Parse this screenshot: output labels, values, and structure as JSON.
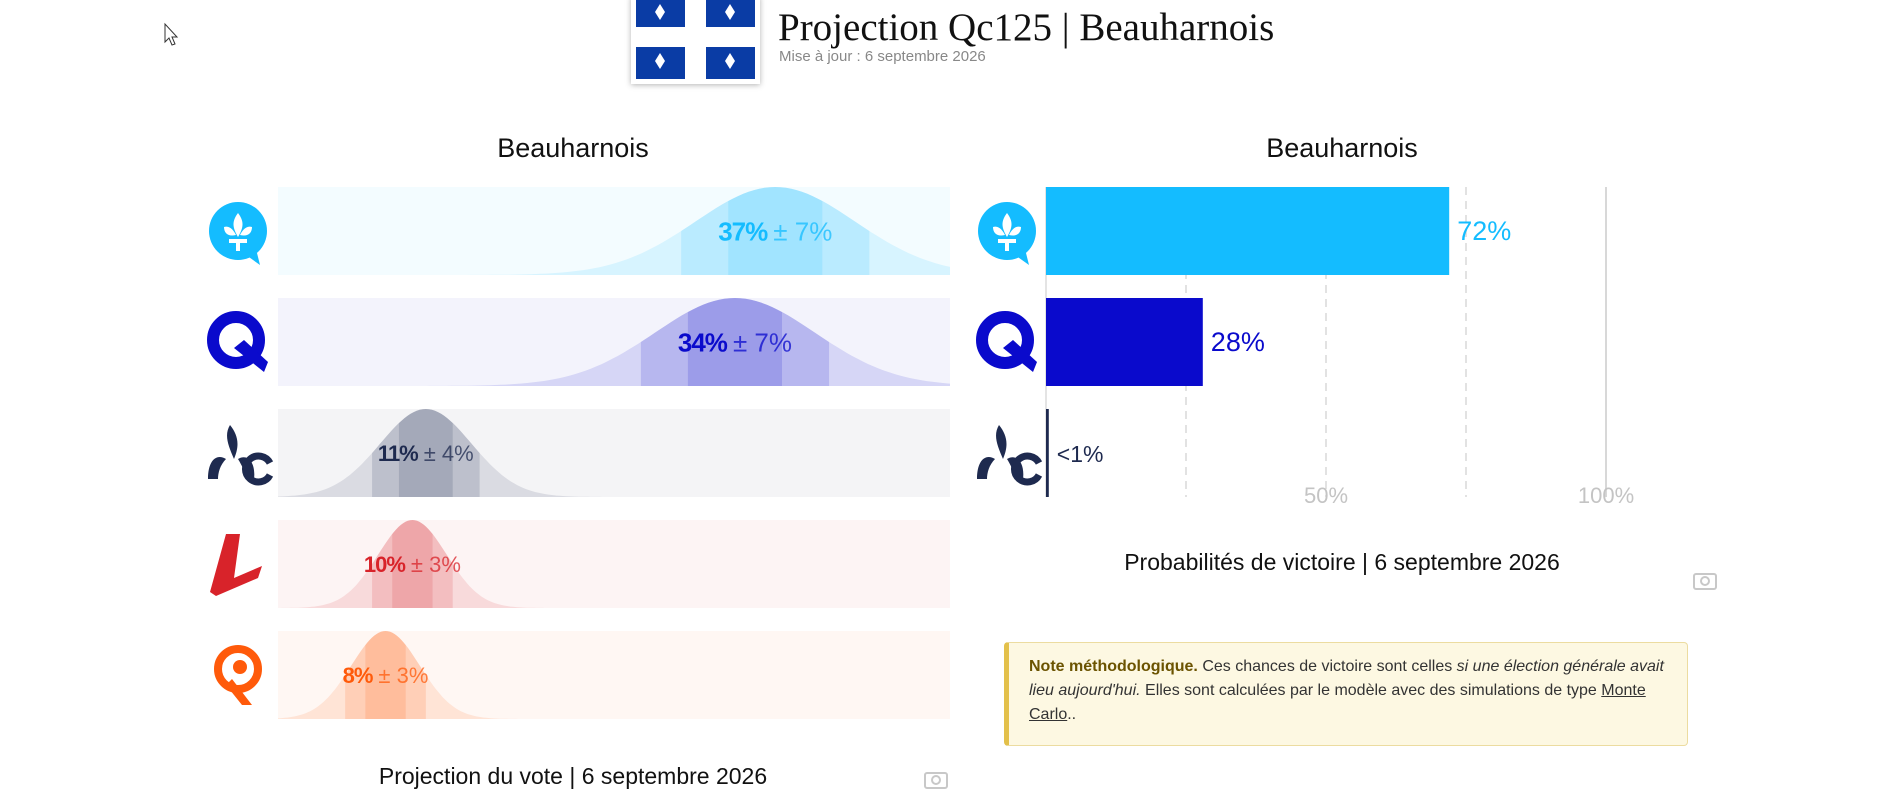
{
  "header": {
    "title": "Projection Qc125 | Beauharnois",
    "updated": "Mise à jour : 6 septembre 2026"
  },
  "chart_data": [
    {
      "type": "distribution",
      "title": "Beauharnois",
      "footer": "Projection du vote | 6 septembre 2026",
      "categories": [
        null,
        null,
        null,
        null,
        null
      ],
      "values": [
        37,
        34,
        11,
        10,
        8
      ],
      "value_labels": [
        "37%",
        "34%",
        "11%",
        "10%",
        "8%"
      ],
      "errors": [
        7,
        7,
        4,
        3,
        3
      ],
      "error_labels": [
        "± 7%",
        "± 7%",
        "± 4%",
        "± 3%",
        "± 3%"
      ],
      "colors": [
        "#14bcff",
        "#0a0acc",
        "#1e2a4f",
        "#d8232a",
        "#ff5a0a"
      ],
      "xlim": [
        0,
        50
      ]
    },
    {
      "type": "hbar",
      "title": "Beauharnois",
      "footer": "Probabilités de victoire | 6 septembre 2026",
      "categories": [
        null,
        null,
        null
      ],
      "values": [
        72,
        28,
        0.5
      ],
      "value_labels": [
        "72%",
        "28%",
        "<1%"
      ],
      "colors": [
        "#14bcff",
        "#0a0acc",
        "#1e2a4f"
      ],
      "xlim": [
        0,
        100
      ],
      "xticks": [
        {
          "value": 50,
          "label": "50%"
        },
        {
          "value": 100,
          "label": "100%"
        }
      ],
      "xgrid": [
        25,
        50,
        75
      ]
    }
  ],
  "note": {
    "title": "Note méthodologique.",
    "text1": " Ces chances de victoire sont celles ",
    "italic": "si une élection générale avait lieu aujourd'hui.",
    "text2": " Elles sont calculées par le modèle avec des simulations de type ",
    "link": "Monte Carlo",
    "text3": ".."
  }
}
